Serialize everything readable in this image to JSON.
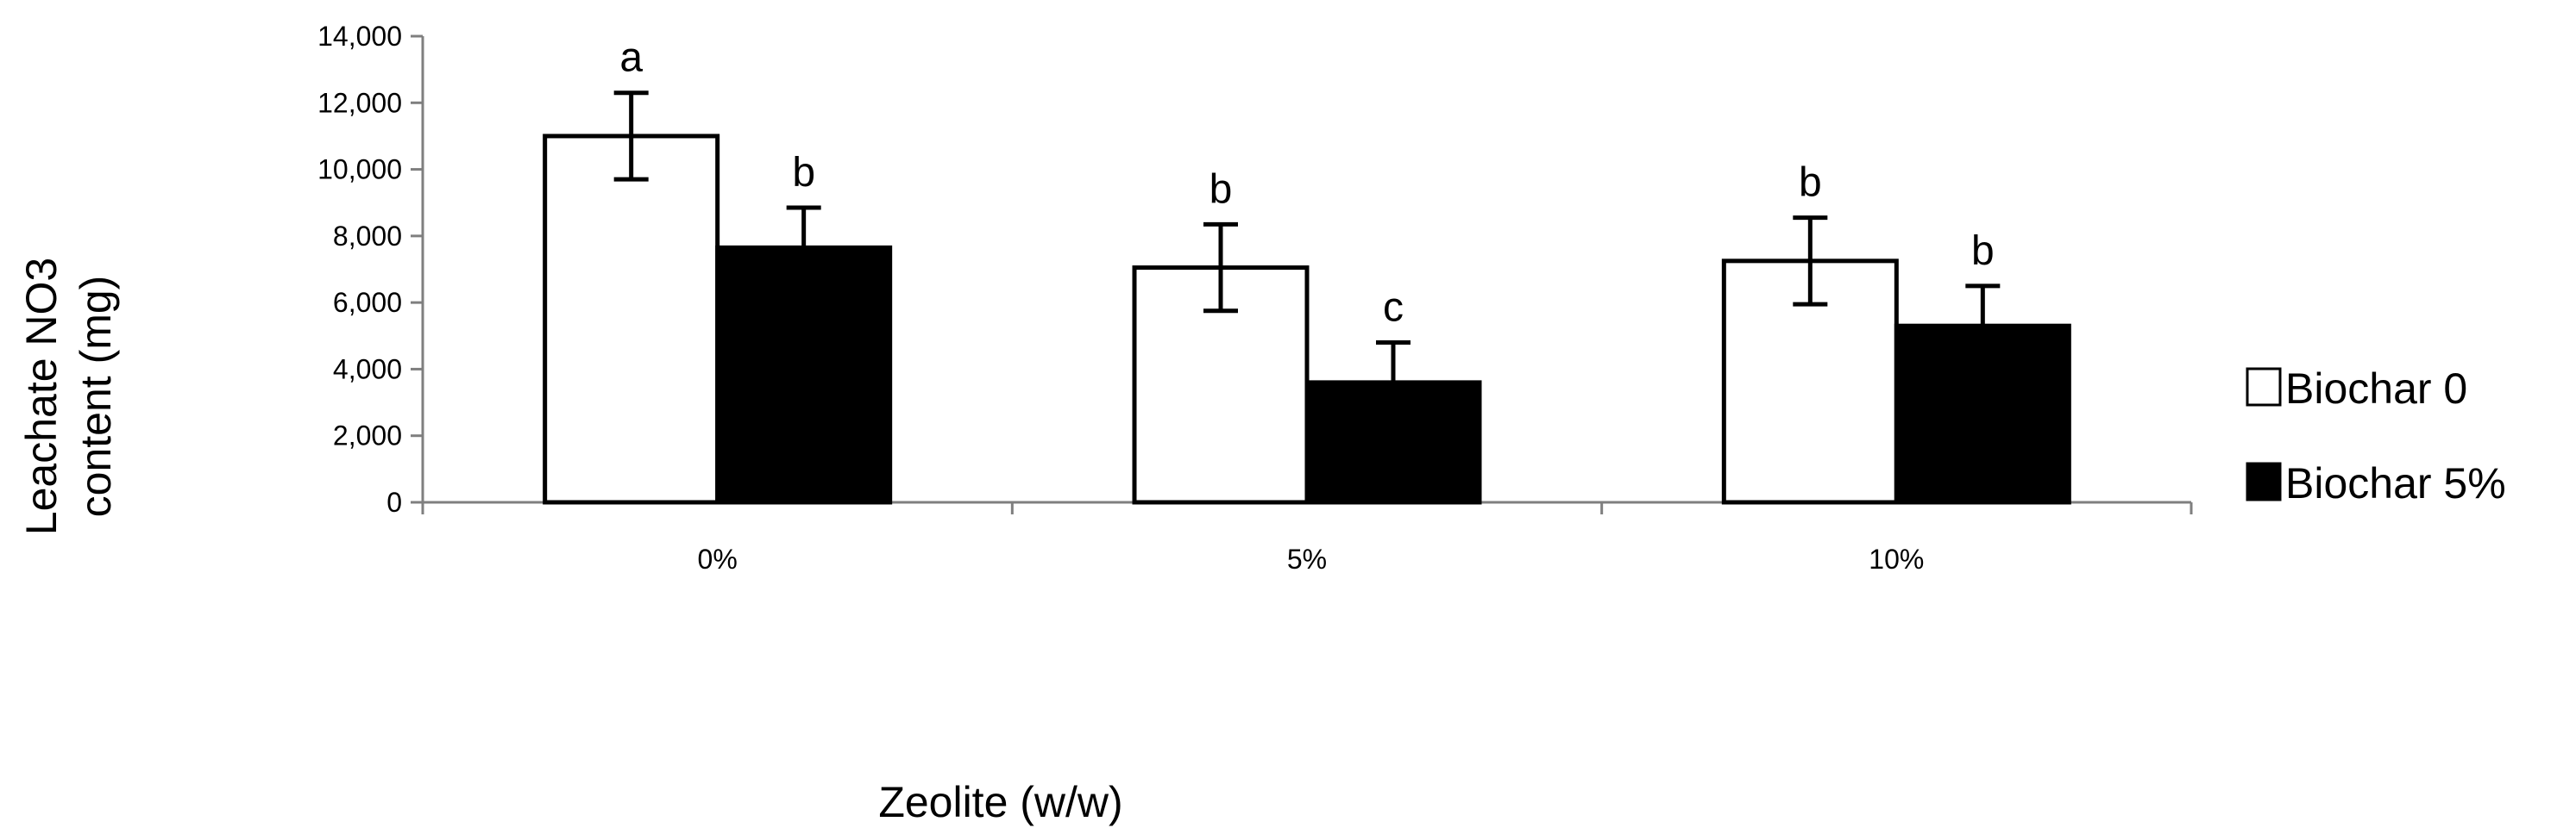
{
  "chart_data": {
    "type": "bar",
    "categories": [
      "0%",
      "5%",
      "10%"
    ],
    "series": [
      {
        "name": "Biochar 0",
        "fill": "#ffffff",
        "values": [
          11000,
          7050,
          7250
        ],
        "errors": [
          1300,
          1300,
          1300
        ],
        "letters": [
          "a",
          "b",
          "b"
        ]
      },
      {
        "name": "Biochar 5%",
        "fill": "#000000",
        "values": [
          7650,
          3600,
          5300
        ],
        "errors": [
          1200,
          1200,
          1200
        ],
        "letters": [
          "b",
          "c",
          "b"
        ]
      }
    ],
    "ylabel_lines": [
      "Leachate NO3",
      "content (mg)"
    ],
    "xlabel": "Zeolite (w/w)",
    "ylim": [
      0,
      14000
    ],
    "yticks": [
      0,
      2000,
      4000,
      6000,
      8000,
      10000,
      12000,
      14000
    ],
    "ytick_labels": [
      "0",
      "2,000",
      "4,000",
      "6,000",
      "8,000",
      "10,000",
      "12,000",
      "14,000"
    ],
    "grid": false,
    "legend_position": "right"
  }
}
